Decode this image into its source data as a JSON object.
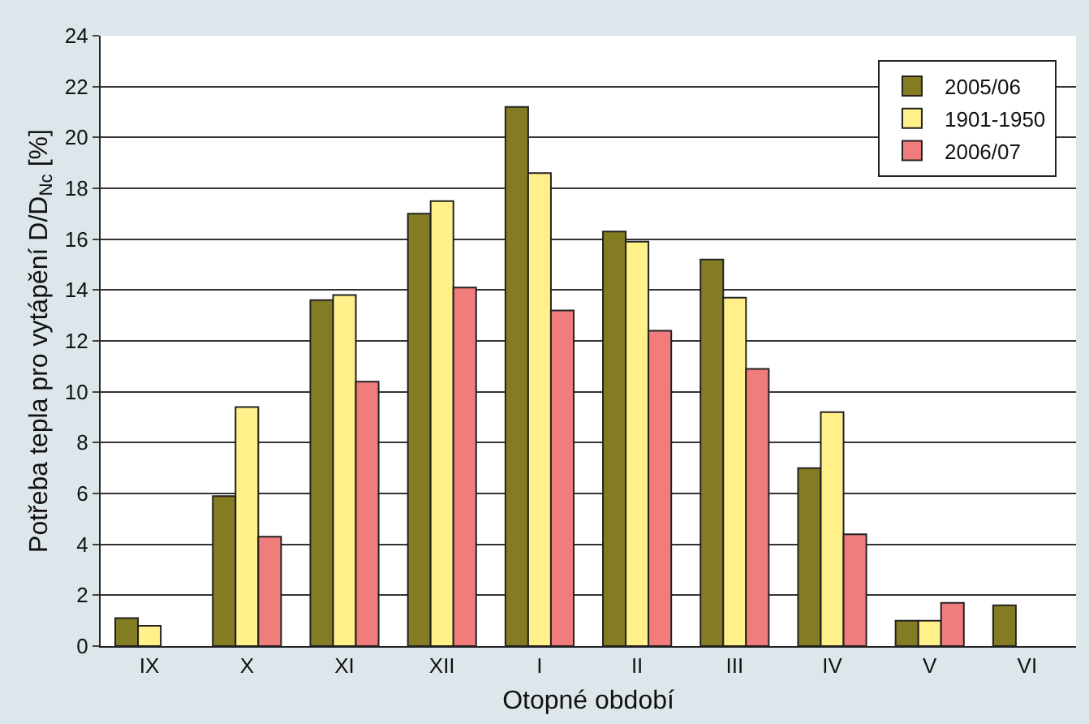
{
  "chart_data": {
    "type": "bar",
    "xlabel": "Otopné období",
    "ylabel": "Potřeba tepla pro vytápění D/D$_{Nc}$ [%]",
    "categories": [
      "IX",
      "X",
      "XI",
      "XII",
      "I",
      "II",
      "III",
      "IV",
      "V",
      "VI"
    ],
    "series": [
      {
        "name": "2005/06",
        "color": "#847c22",
        "values": [
          1.1,
          5.9,
          13.6,
          17.0,
          21.2,
          16.3,
          15.2,
          7.0,
          1.0,
          1.6
        ]
      },
      {
        "name": "1901-1950",
        "color": "#fff08a",
        "values": [
          0.8,
          9.4,
          13.8,
          17.5,
          18.6,
          15.9,
          13.7,
          9.2,
          1.0,
          null
        ]
      },
      {
        "name": "2006/07",
        "color": "#f07c7c",
        "values": [
          null,
          4.3,
          10.4,
          14.1,
          13.2,
          12.4,
          10.9,
          4.4,
          1.7,
          null
        ]
      }
    ],
    "ylim": [
      0,
      24
    ],
    "yticks": [
      0,
      2,
      4,
      6,
      8,
      10,
      12,
      14,
      16,
      18,
      20,
      22,
      24
    ],
    "grid": "y",
    "legend": "top right"
  }
}
